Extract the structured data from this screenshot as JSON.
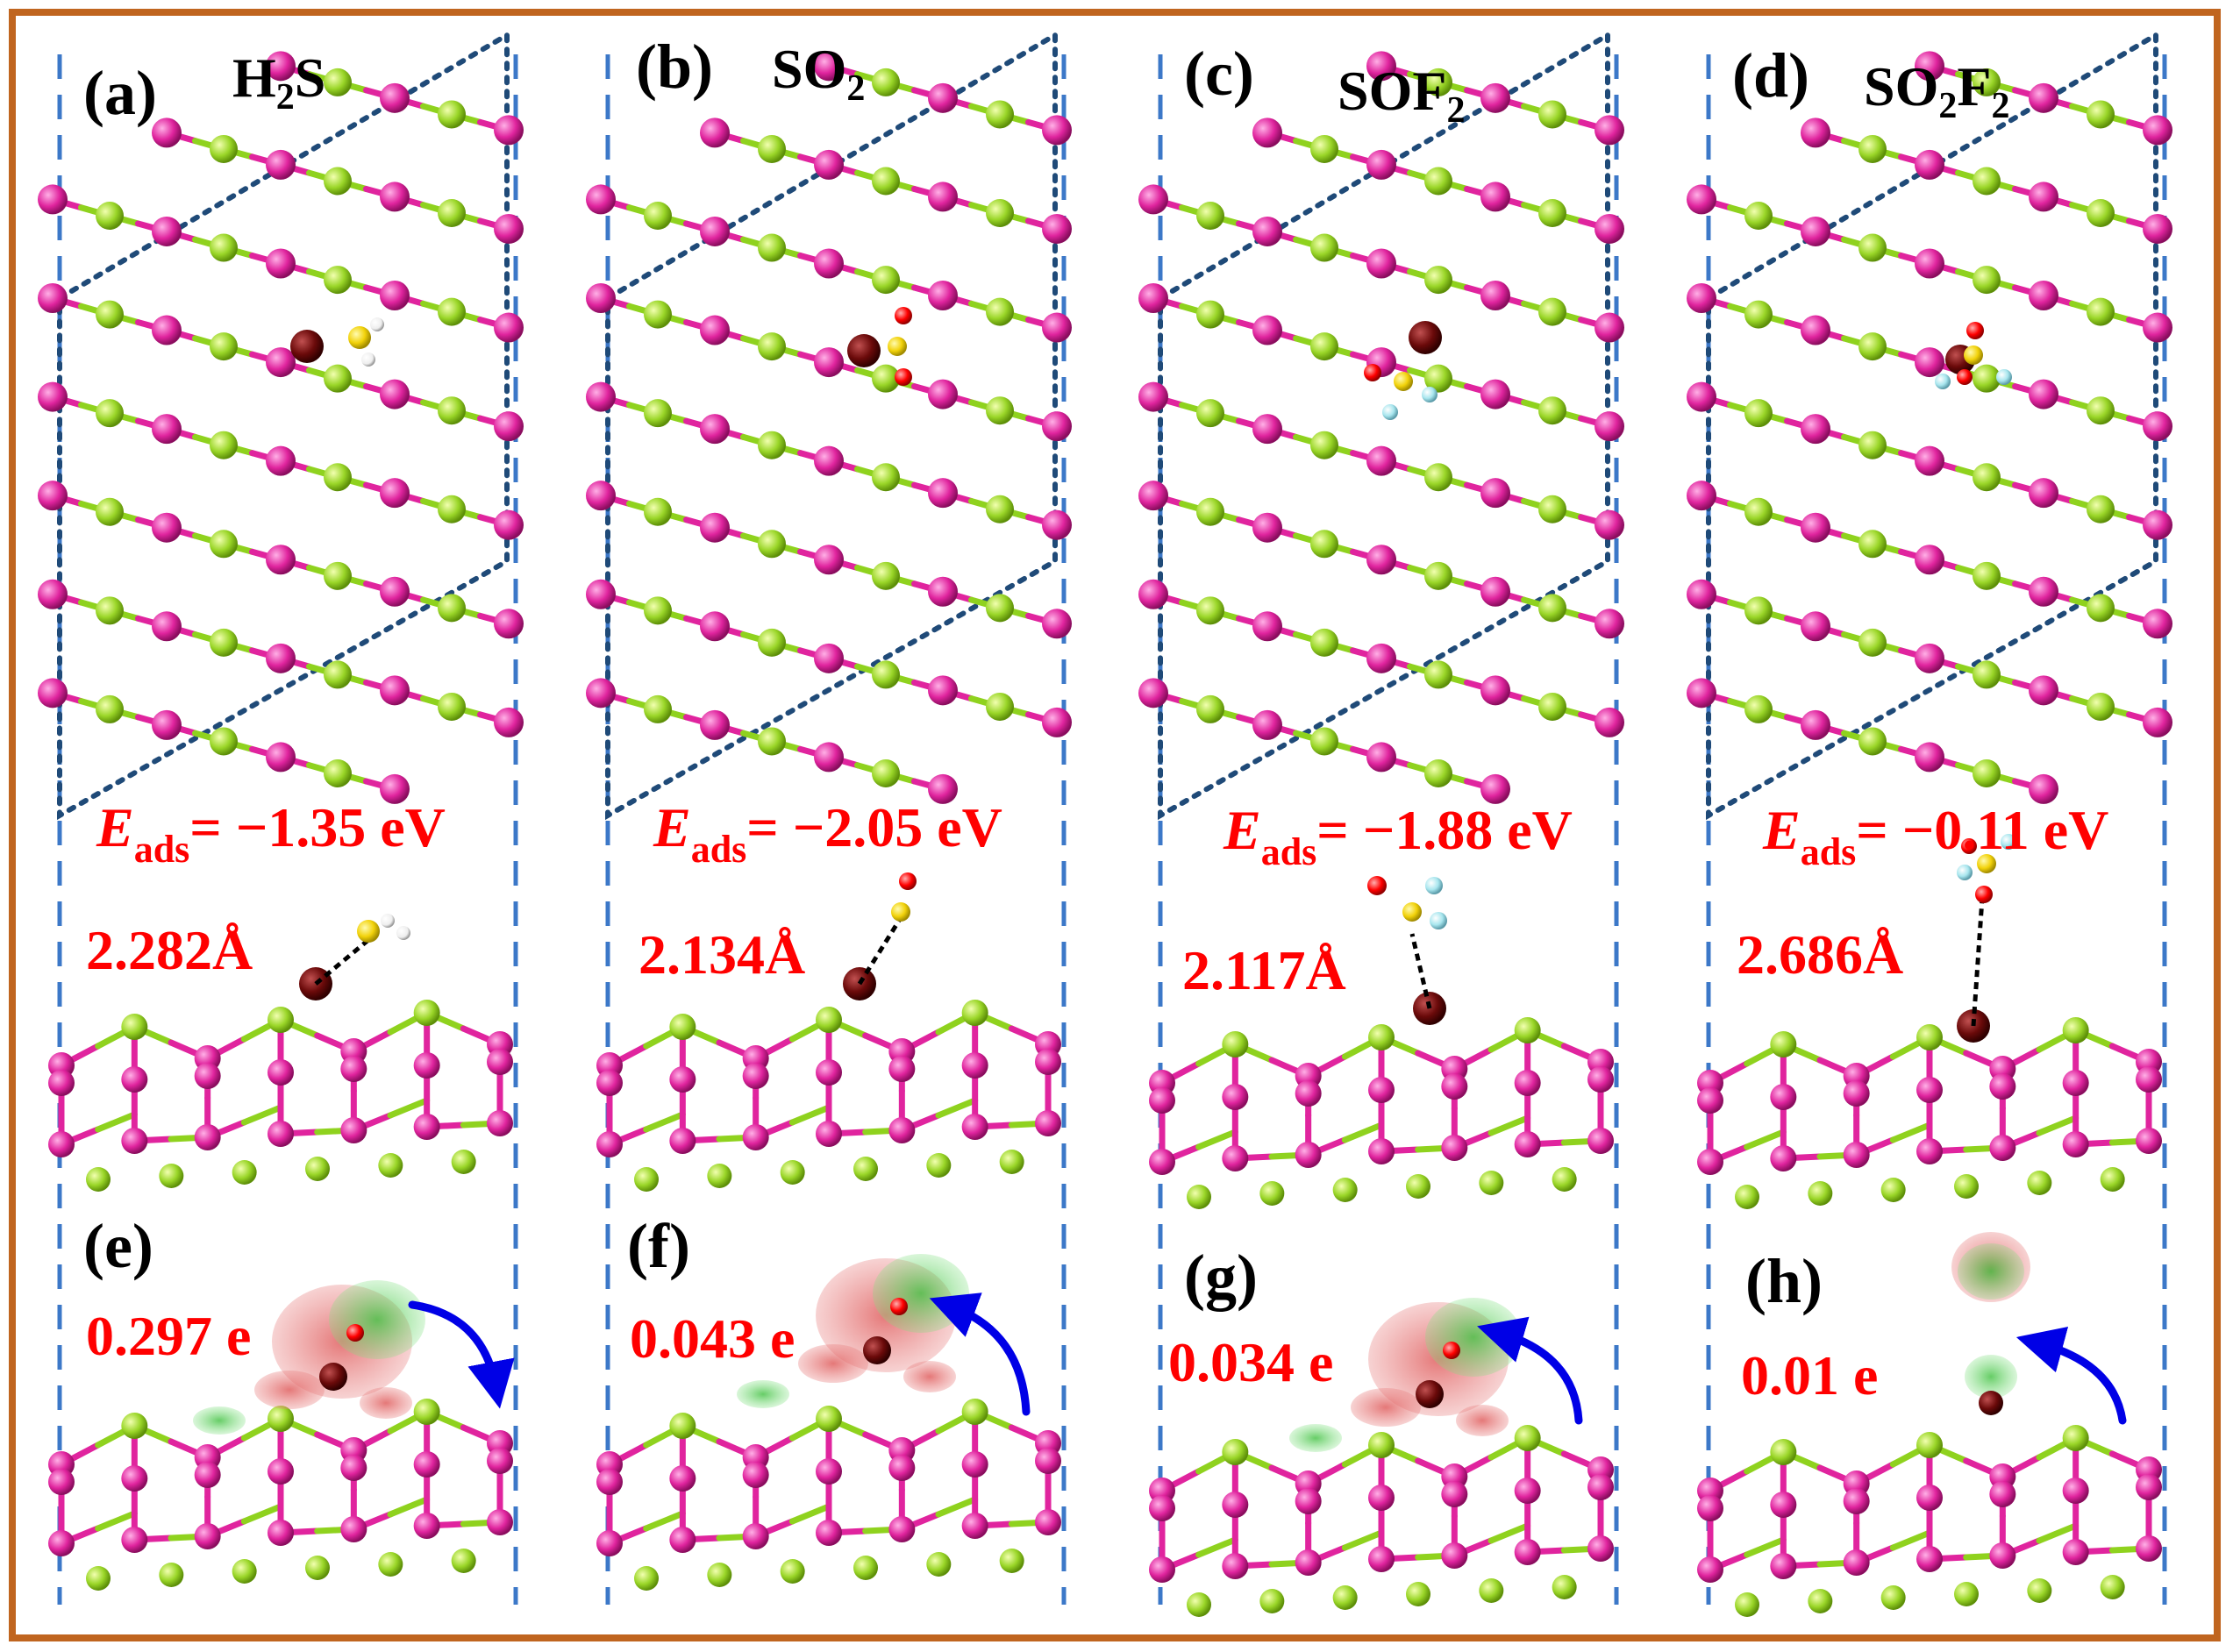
{
  "panels": [
    {
      "top_letter": "(a)",
      "molecule": {
        "base1": "H",
        "sub1": "2",
        "base2": "S",
        "sub2": ""
      },
      "eads": {
        "symbol": "E",
        "sub": "ads",
        "value": "= −1.35 eV"
      },
      "bond_length": "2.282Å",
      "bottom_letter": "(e)",
      "charge": "0.297 e",
      "colors": {
        "atom_main": "#8fd21e",
        "atom_secondary": "#e0249e",
        "dopant": "#6b0a0a",
        "sulfur": "#f2d20a",
        "oxygen": "#ff0000",
        "fluorine": "#a8e6ee",
        "hydrogen": "#f4f4f4"
      },
      "arrow_icon": "curved-arrow-clockwise-icon"
    },
    {
      "top_letter": "(b)",
      "molecule": {
        "base1": "SO",
        "sub1": "2",
        "base2": "",
        "sub2": ""
      },
      "eads": {
        "symbol": "E",
        "sub": "ads",
        "value": "= −2.05 eV"
      },
      "bond_length": "2.134Å",
      "bottom_letter": "(f)",
      "charge": "0.043 e",
      "arrow_icon": "curved-arrow-counterclockwise-icon"
    },
    {
      "top_letter": "(c)",
      "molecule": {
        "base1": "SOF",
        "sub1": "2",
        "base2": "",
        "sub2": ""
      },
      "eads": {
        "symbol": "E",
        "sub": "ads",
        "value": "= −1.88 eV"
      },
      "bond_length": "2.117Å",
      "bottom_letter": "(g)",
      "charge": "0.034 e",
      "arrow_icon": "curved-arrow-counterclockwise-icon"
    },
    {
      "top_letter": "(d)",
      "molecule": {
        "base1": "SO",
        "sub1": "2",
        "base2": "F",
        "sub2": "2"
      },
      "eads": {
        "symbol": "E",
        "sub": "ads",
        "value": "= −0.11 eV"
      },
      "bond_length": "2.686Å",
      "bottom_letter": "(h)",
      "charge": "0.01 e",
      "arrow_icon": "curved-arrow-counterclockwise-icon"
    }
  ],
  "colors": {
    "frame": "#c0651f",
    "divider": "#3c78c8",
    "cell_outline": "#1f4a78",
    "label_red": "#ff0000",
    "arrow": "#0000e6",
    "density_gain": "#d05050",
    "density_loss": "#3fbf3f",
    "atom_yellow_green": "#8fd21e",
    "atom_magenta": "#e0249e",
    "atom_dopant": "#6b0a0a",
    "atom_sulfur": "#f2d20a",
    "atom_oxygen": "#ff0000",
    "atom_fluorine": "#a8e6ee",
    "atom_hydrogen": "#f4f4f4"
  }
}
